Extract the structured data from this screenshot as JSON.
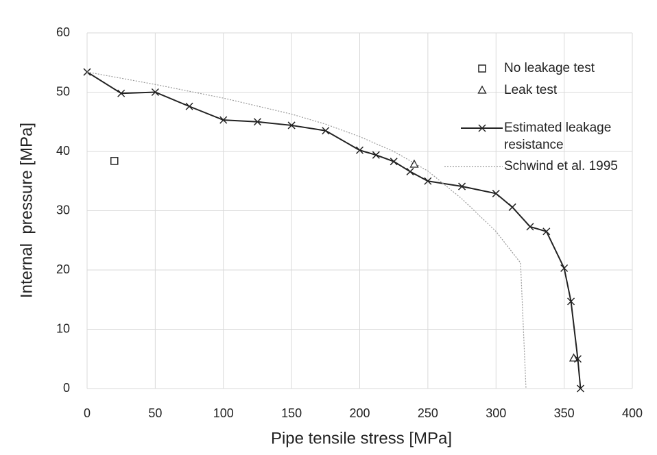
{
  "chart_data": {
    "type": "line",
    "xlabel": "Pipe tensile stress [MPa]",
    "ylabel": "Internal  pressure [MPa]",
    "xlim": [
      0,
      400
    ],
    "xticks": [
      0,
      50,
      100,
      150,
      200,
      250,
      300,
      350,
      400
    ],
    "ylim": [
      0,
      60
    ],
    "yticks": [
      0,
      10,
      20,
      30,
      40,
      50,
      60
    ],
    "grid": true,
    "legend": "upper right",
    "series": [
      {
        "name": "No leakage test",
        "color": "#222222",
        "marker": "square",
        "line": "none",
        "x": [
          20
        ],
        "values": [
          38.4
        ]
      },
      {
        "name": "Leak test",
        "color": "#222222",
        "marker": "triangle",
        "line": "none",
        "x": [
          240,
          357
        ],
        "values": [
          37.8,
          5.1
        ]
      },
      {
        "name": "Estimated leakage resistance",
        "color": "#222222",
        "marker": "x",
        "line": "solid",
        "x": [
          0,
          25,
          50,
          75,
          100,
          125,
          150,
          175,
          200,
          212,
          225,
          237,
          250,
          275,
          300,
          312,
          325,
          337,
          350,
          355,
          360,
          362
        ],
        "values": [
          53.4,
          49.8,
          50.0,
          47.6,
          45.3,
          45.0,
          44.4,
          43.5,
          40.2,
          39.4,
          38.3,
          36.6,
          35.0,
          34.1,
          32.9,
          30.6,
          27.3,
          26.5,
          20.3,
          14.7,
          5.0,
          0
        ]
      },
      {
        "name": "Schwind et al. 1995",
        "color": "#999999",
        "marker": "none",
        "line": "dotted",
        "x": [
          0,
          50,
          100,
          150,
          175,
          200,
          225,
          250,
          275,
          300,
          318,
          322
        ],
        "values": [
          53.4,
          51.3,
          49.0,
          46.3,
          44.6,
          42.5,
          40.0,
          36.7,
          32.0,
          26.5,
          21.2,
          0
        ]
      }
    ]
  }
}
